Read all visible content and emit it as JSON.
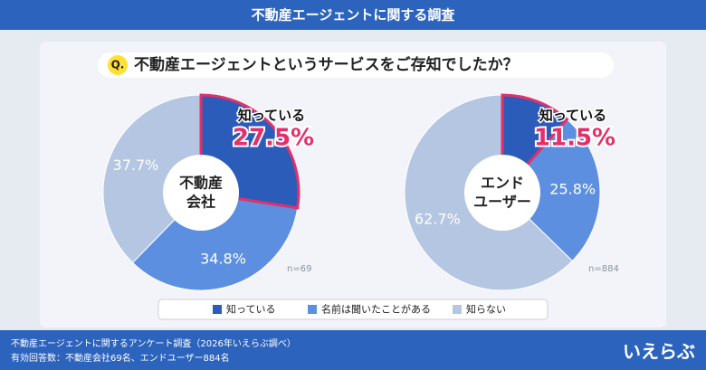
{
  "header": {
    "title": "不動産エージェントに関する調査"
  },
  "question": {
    "badge": "Q.",
    "text": "不動産エージェントというサービスをご存知でしたか？"
  },
  "chart_data": [
    {
      "type": "pie",
      "center_label": [
        "不動産",
        "会社"
      ],
      "note": "n=69",
      "categories": [
        "知っている",
        "名前は聞いたことがある",
        "知らない"
      ],
      "values": [
        27.5,
        34.8,
        37.7
      ],
      "value_labels": [
        "27.5%",
        "34.8%",
        "37.7%"
      ],
      "colors": [
        "#2c5cb9",
        "#5c8fdf",
        "#b4c6e2"
      ],
      "highlight_color": "#e4306a"
    },
    {
      "type": "pie",
      "center_label": [
        "エンド",
        "ユーザー"
      ],
      "note": "n=884",
      "categories": [
        "知っている",
        "名前は聞いたことがある",
        "知らない"
      ],
      "values": [
        11.5,
        25.8,
        62.7
      ],
      "value_labels": [
        "11.5%",
        "25.8%",
        "62.7%"
      ],
      "colors": [
        "#2c5cb9",
        "#5c8fdf",
        "#b4c6e2"
      ],
      "highlight_color": "#e4306a"
    }
  ],
  "footer": {
    "lines": [
      "不動産エージェントに関するアンケート調査（2026年いえらぶ調べ）",
      "有効回答数：不動産会社69名、エンドユーザー884名"
    ],
    "logo": "いえらぶ"
  }
}
